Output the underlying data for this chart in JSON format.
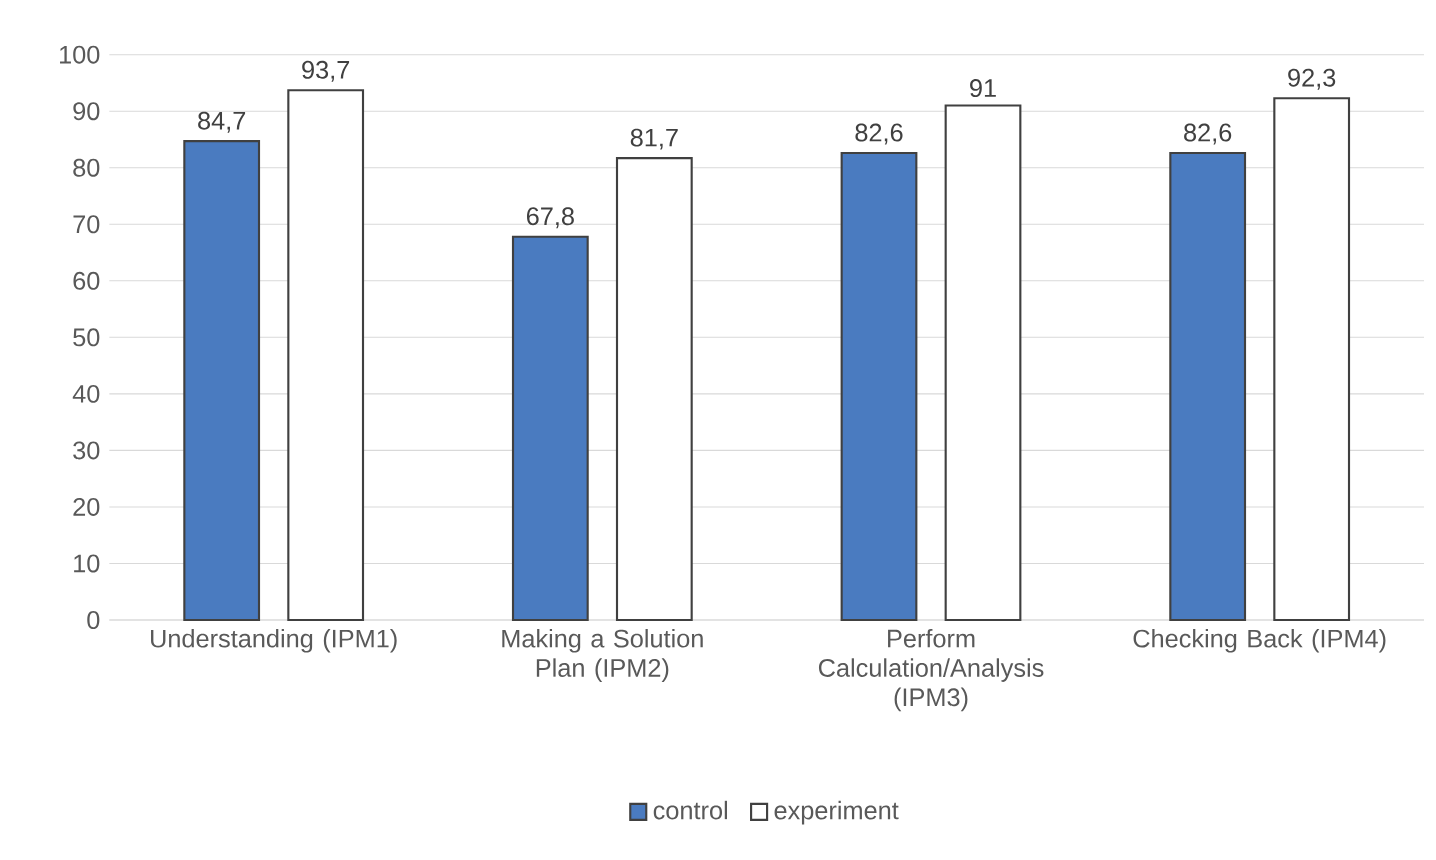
{
  "chart_data": {
    "type": "bar",
    "categories": [
      "Understanding (IPM1)",
      "Making a Solution Plan (IPM2)",
      "Perform Calculation/Analysis (IPM3)",
      "Checking Back (IPM4)"
    ],
    "series": [
      {
        "name": "control",
        "color": "#4a7bc0",
        "values": [
          84.7,
          67.8,
          82.6,
          82.6
        ],
        "value_labels": [
          "84,7",
          "67,8",
          "82,6",
          "82,6"
        ]
      },
      {
        "name": "experiment",
        "color": "#ffffff",
        "values": [
          93.7,
          81.7,
          91,
          92.3
        ],
        "value_labels": [
          "93,7",
          "81,7",
          "91",
          "92,3"
        ]
      }
    ],
    "ylim": [
      0,
      100
    ],
    "yticks": [
      0,
      10,
      20,
      30,
      40,
      50,
      60,
      70,
      80,
      90,
      100
    ],
    "grid": "y",
    "legend": "bottom"
  }
}
